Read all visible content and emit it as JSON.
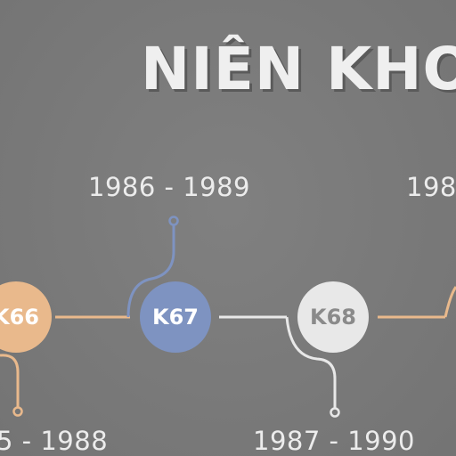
{
  "title": "NIÊN KHO",
  "colors": {
    "background": "#7b7b7b",
    "orange": "#e9b98c",
    "blue": "#7e93c1",
    "white": "#e8e8e8"
  },
  "timeline": {
    "nodes": [
      {
        "label": "K66",
        "color": "orange"
      },
      {
        "label": "K67",
        "color": "blue"
      },
      {
        "label": "K68",
        "color": "white"
      }
    ],
    "years_top": [
      "1986 - 1989",
      "198"
    ],
    "years_bottom": [
      "5 - 1988",
      "1987 - 1990"
    ]
  }
}
